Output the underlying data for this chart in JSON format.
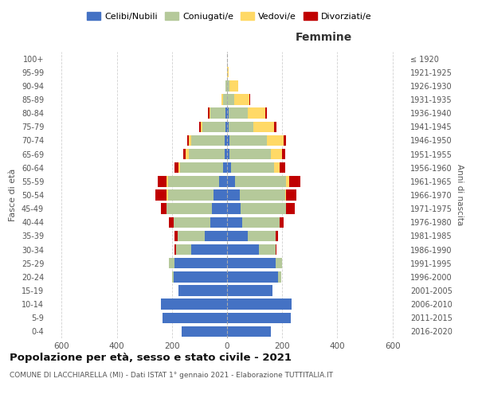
{
  "age_groups": [
    "0-4",
    "5-9",
    "10-14",
    "15-19",
    "20-24",
    "25-29",
    "30-34",
    "35-39",
    "40-44",
    "45-49",
    "50-54",
    "55-59",
    "60-64",
    "65-69",
    "70-74",
    "75-79",
    "80-84",
    "85-89",
    "90-94",
    "95-99",
    "100+"
  ],
  "birth_years": [
    "2016-2020",
    "2011-2015",
    "2006-2010",
    "2001-2005",
    "1996-2000",
    "1991-1995",
    "1986-1990",
    "1981-1985",
    "1976-1980",
    "1971-1975",
    "1966-1970",
    "1961-1965",
    "1956-1960",
    "1951-1955",
    "1946-1950",
    "1941-1945",
    "1936-1940",
    "1931-1935",
    "1926-1930",
    "1921-1925",
    "≤ 1920"
  ],
  "male": {
    "celibi": [
      165,
      235,
      240,
      175,
      195,
      190,
      130,
      80,
      60,
      55,
      50,
      30,
      15,
      10,
      10,
      5,
      5,
      0,
      0,
      0,
      0
    ],
    "coniugati": [
      0,
      0,
      0,
      0,
      5,
      20,
      55,
      100,
      135,
      165,
      165,
      185,
      155,
      130,
      120,
      85,
      55,
      15,
      5,
      0,
      0
    ],
    "vedovi": [
      0,
      0,
      0,
      0,
      0,
      0,
      0,
      0,
      0,
      0,
      5,
      5,
      5,
      10,
      10,
      5,
      5,
      5,
      0,
      0,
      0
    ],
    "divorziati": [
      0,
      0,
      0,
      0,
      0,
      0,
      5,
      10,
      15,
      20,
      40,
      30,
      15,
      10,
      5,
      5,
      5,
      0,
      0,
      0,
      0
    ]
  },
  "female": {
    "nubili": [
      160,
      230,
      235,
      165,
      185,
      175,
      115,
      75,
      55,
      50,
      45,
      30,
      15,
      10,
      10,
      5,
      5,
      0,
      0,
      0,
      0
    ],
    "coniugate": [
      0,
      0,
      0,
      0,
      10,
      25,
      60,
      100,
      135,
      165,
      165,
      185,
      155,
      150,
      135,
      90,
      70,
      25,
      10,
      0,
      0
    ],
    "vedove": [
      0,
      0,
      0,
      0,
      0,
      0,
      0,
      0,
      0,
      0,
      5,
      10,
      20,
      40,
      60,
      75,
      65,
      55,
      30,
      5,
      0
    ],
    "divorziate": [
      0,
      0,
      0,
      0,
      0,
      0,
      5,
      10,
      15,
      30,
      35,
      40,
      20,
      10,
      10,
      10,
      5,
      5,
      0,
      0,
      0
    ]
  },
  "colors": {
    "celibi": "#4472C4",
    "coniugati": "#B5C99A",
    "vedovi": "#FFD966",
    "divorziati": "#C00000"
  },
  "title": "Popolazione per età, sesso e stato civile - 2021",
  "subtitle": "COMUNE DI LACCHIARELLA (MI) - Dati ISTAT 1° gennaio 2021 - Elaborazione TUTTITALIA.IT",
  "xlabel_right": "Femmine",
  "ylabel_left": "Fasce di età",
  "ylabel_right": "Anni di nascita",
  "legend_labels": [
    "Celibi/Nubili",
    "Coniugati/e",
    "Vedovi/e",
    "Divorziati/e"
  ],
  "xlim": 650,
  "xticks": [
    -600,
    -400,
    -200,
    0,
    200,
    400,
    600
  ],
  "background_color": "#ffffff",
  "grid_color": "#cccccc"
}
